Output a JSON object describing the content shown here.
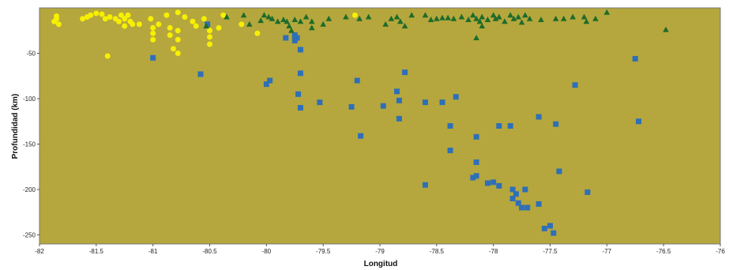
{
  "chart_data": {
    "type": "scatter",
    "xlabel": "Longitud",
    "ylabel": "Profundidad (km)",
    "xlim": [
      -82,
      -76
    ],
    "ylim": [
      -260,
      0
    ],
    "x_ticks": [
      -82,
      -81.5,
      -81,
      -80.5,
      -80,
      -79.5,
      -79,
      -78.5,
      -78,
      -77.5,
      -77,
      -76.5,
      -76
    ],
    "y_ticks": [
      -50,
      -100,
      -150,
      -200,
      -250
    ],
    "grid": false,
    "background_color": "#b5a73d",
    "series": [
      {
        "marker": "circle",
        "color": "#f6f000",
        "points": [
          [
            -81.85,
            -9
          ],
          [
            -81.85,
            -12
          ],
          [
            -81.87,
            -15
          ],
          [
            -81.83,
            -18
          ],
          [
            -81.62,
            -12
          ],
          [
            -81.58,
            -10
          ],
          [
            -81.55,
            -8
          ],
          [
            -81.5,
            -6
          ],
          [
            -81.45,
            -7
          ],
          [
            -81.42,
            -12
          ],
          [
            -81.38,
            -10
          ],
          [
            -81.33,
            -12
          ],
          [
            -81.3,
            -15
          ],
          [
            -81.28,
            -8
          ],
          [
            -81.25,
            -12
          ],
          [
            -81.25,
            -20
          ],
          [
            -81.22,
            -8
          ],
          [
            -81.2,
            -15
          ],
          [
            -81.18,
            -18
          ],
          [
            -81.12,
            -18
          ],
          [
            -81.4,
            -53
          ],
          [
            -81.02,
            -12
          ],
          [
            -81.0,
            -22
          ],
          [
            -81.0,
            -28
          ],
          [
            -81.0,
            -35
          ],
          [
            -80.95,
            -18
          ],
          [
            -80.88,
            -8
          ],
          [
            -80.85,
            -22
          ],
          [
            -80.85,
            -30
          ],
          [
            -80.82,
            -45
          ],
          [
            -80.78,
            -5
          ],
          [
            -80.78,
            -25
          ],
          [
            -80.78,
            -35
          ],
          [
            -80.78,
            -50
          ],
          [
            -80.72,
            -10
          ],
          [
            -80.65,
            -15
          ],
          [
            -80.62,
            -20
          ],
          [
            -80.55,
            -12
          ],
          [
            -80.5,
            -25
          ],
          [
            -80.5,
            -32
          ],
          [
            -80.5,
            -40
          ],
          [
            -80.42,
            -22
          ],
          [
            -80.38,
            -8
          ],
          [
            -80.22,
            -18
          ],
          [
            -80.08,
            -28
          ],
          [
            -79.22,
            -8
          ]
        ]
      },
      {
        "marker": "square",
        "color": "#2e6fb8",
        "points": [
          [
            -81.0,
            -55
          ],
          [
            -80.58,
            -73
          ],
          [
            -80.52,
            -18
          ],
          [
            -80.0,
            -84
          ],
          [
            -79.97,
            -80
          ],
          [
            -79.83,
            -33
          ],
          [
            -79.75,
            -30
          ],
          [
            -79.75,
            -36
          ],
          [
            -79.73,
            -33
          ],
          [
            -79.7,
            -46
          ],
          [
            -79.72,
            -95
          ],
          [
            -79.7,
            -110
          ],
          [
            -79.7,
            -72
          ],
          [
            -79.53,
            -104
          ],
          [
            -79.25,
            -109
          ],
          [
            -79.2,
            -80
          ],
          [
            -79.17,
            -141
          ],
          [
            -78.97,
            -108
          ],
          [
            -78.85,
            -92
          ],
          [
            -78.83,
            -102
          ],
          [
            -78.83,
            -122
          ],
          [
            -78.78,
            -71
          ],
          [
            -78.6,
            -104
          ],
          [
            -78.6,
            -195
          ],
          [
            -78.45,
            -104
          ],
          [
            -78.38,
            -130
          ],
          [
            -78.38,
            -157
          ],
          [
            -78.33,
            -98
          ],
          [
            -78.18,
            -187
          ],
          [
            -78.15,
            -142
          ],
          [
            -78.15,
            -170
          ],
          [
            -78.15,
            -185
          ],
          [
            -78.05,
            -193
          ],
          [
            -78.0,
            -192
          ],
          [
            -77.95,
            -196
          ],
          [
            -77.95,
            -130
          ],
          [
            -77.85,
            -130
          ],
          [
            -77.83,
            -200
          ],
          [
            -77.83,
            -210
          ],
          [
            -77.8,
            -205
          ],
          [
            -77.78,
            -215
          ],
          [
            -77.75,
            -220
          ],
          [
            -77.72,
            -200
          ],
          [
            -77.7,
            -220
          ],
          [
            -77.6,
            -120
          ],
          [
            -77.6,
            -216
          ],
          [
            -77.55,
            -243
          ],
          [
            -77.5,
            -240
          ],
          [
            -77.47,
            -248
          ],
          [
            -77.45,
            -128
          ],
          [
            -77.42,
            -180
          ],
          [
            -77.28,
            -85
          ],
          [
            -77.17,
            -203
          ],
          [
            -76.75,
            -56
          ],
          [
            -76.72,
            -125
          ]
        ]
      },
      {
        "marker": "triangle",
        "color": "#1f6b2a",
        "points": [
          [
            -80.53,
            -20
          ],
          [
            -80.35,
            -10
          ],
          [
            -80.2,
            -8
          ],
          [
            -80.15,
            -18
          ],
          [
            -80.05,
            -14
          ],
          [
            -80.02,
            -8
          ],
          [
            -79.98,
            -10
          ],
          [
            -79.95,
            -12
          ],
          [
            -79.9,
            -15
          ],
          [
            -79.85,
            -13
          ],
          [
            -79.82,
            -15
          ],
          [
            -79.8,
            -20
          ],
          [
            -79.78,
            -25
          ],
          [
            -79.75,
            -13
          ],
          [
            -79.7,
            -15
          ],
          [
            -79.65,
            -10
          ],
          [
            -79.6,
            -22
          ],
          [
            -79.5,
            -18
          ],
          [
            -79.45,
            -12
          ],
          [
            -79.3,
            -10
          ],
          [
            -79.18,
            -12
          ],
          [
            -79.1,
            -10
          ],
          [
            -78.95,
            -18
          ],
          [
            -78.9,
            -12
          ],
          [
            -78.85,
            -10
          ],
          [
            -78.82,
            -15
          ],
          [
            -78.78,
            -20
          ],
          [
            -78.72,
            -8
          ],
          [
            -78.6,
            -8
          ],
          [
            -78.55,
            -13
          ],
          [
            -78.5,
            -12
          ],
          [
            -78.45,
            -11
          ],
          [
            -78.4,
            -11
          ],
          [
            -78.35,
            -12
          ],
          [
            -78.28,
            -10
          ],
          [
            -78.22,
            -13
          ],
          [
            -78.18,
            -8
          ],
          [
            -78.15,
            -12
          ],
          [
            -78.12,
            -15
          ],
          [
            -78.1,
            -10
          ],
          [
            -78.05,
            -13
          ],
          [
            -78.0,
            -8
          ],
          [
            -77.98,
            -12
          ],
          [
            -77.95,
            -10
          ],
          [
            -77.9,
            -15
          ],
          [
            -77.85,
            -8
          ],
          [
            -77.82,
            -12
          ],
          [
            -77.78,
            -10
          ],
          [
            -77.75,
            -16
          ],
          [
            -77.72,
            -8
          ],
          [
            -77.68,
            -12
          ],
          [
            -77.58,
            -13
          ],
          [
            -77.45,
            -12
          ],
          [
            -77.38,
            -12
          ],
          [
            -77.3,
            -10
          ],
          [
            -77.2,
            -10
          ],
          [
            -77.18,
            -15
          ],
          [
            -77.1,
            -12
          ],
          [
            -77.0,
            -5
          ],
          [
            -78.15,
            -33
          ],
          [
            -78.1,
            -20
          ],
          [
            -79.6,
            -15
          ],
          [
            -76.48,
            -24
          ]
        ]
      }
    ]
  }
}
